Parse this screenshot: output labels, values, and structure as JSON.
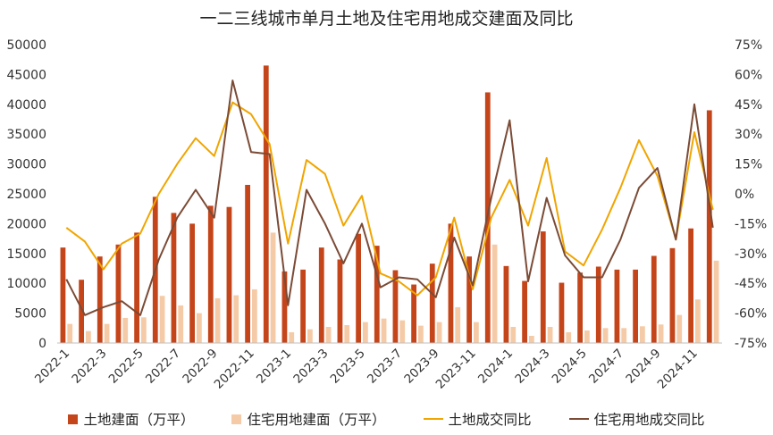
{
  "chart_data": {
    "type": "bar+line",
    "title": "一二三线城市单月土地及住宅用地成交建面及同比",
    "categories": [
      "2022-1",
      "2022-2",
      "2022-3",
      "2022-4",
      "2022-5",
      "2022-6",
      "2022-7",
      "2022-8",
      "2022-9",
      "2022-10",
      "2022-11",
      "2022-12",
      "2023-1",
      "2023-2",
      "2023-3",
      "2023-4",
      "2023-5",
      "2023-6",
      "2023-7",
      "2023-8",
      "2023-9",
      "2023-10",
      "2023-11",
      "2023-12",
      "2024-1",
      "2024-2",
      "2024-3",
      "2024-4",
      "2024-5",
      "2024-6",
      "2024-7",
      "2024-8",
      "2024-9",
      "2024-10",
      "2024-11",
      "2024-12"
    ],
    "x_tick_labels": [
      "2022-1",
      "2022-3",
      "2022-5",
      "2022-7",
      "2022-9",
      "2022-11",
      "2023-1",
      "2023-3",
      "2023-5",
      "2023-7",
      "2023-9",
      "2023-11",
      "2024-1",
      "2024-3",
      "2024-5",
      "2024-7",
      "2024-9",
      "2024-11"
    ],
    "y_left": {
      "min": 0,
      "max": 50000,
      "step": 5000,
      "ticks": [
        "0",
        "5000",
        "10000",
        "15000",
        "20000",
        "25000",
        "30000",
        "35000",
        "40000",
        "45000",
        "50000"
      ]
    },
    "y_right": {
      "min": -75,
      "max": 75,
      "step": 15,
      "ticks": [
        "-75%",
        "-60%",
        "-45%",
        "-30%",
        "-15%",
        "0%",
        "15%",
        "30%",
        "45%",
        "60%",
        "75%"
      ]
    },
    "series": [
      {
        "name": "土地建面（万平）",
        "kind": "bar",
        "axis": "left",
        "color": "#C5451A",
        "values": [
          16000,
          10600,
          14500,
          16500,
          18500,
          24500,
          21800,
          20000,
          23000,
          22800,
          26500,
          46500,
          12000,
          12300,
          16000,
          14000,
          18300,
          16300,
          12200,
          9800,
          13300,
          20000,
          14500,
          42000,
          12900,
          10400,
          18700,
          10100,
          11800,
          12800,
          12300,
          12300,
          14600,
          15900,
          19200,
          39000
        ]
      },
      {
        "name": "住宅用地建面（万平）",
        "kind": "bar",
        "axis": "left",
        "color": "#F5CBA7",
        "values": [
          3200,
          2000,
          3200,
          4200,
          4300,
          7900,
          6300,
          5000,
          7500,
          8000,
          9000,
          18500,
          1800,
          2300,
          2700,
          3000,
          3500,
          4100,
          3800,
          2900,
          3500,
          6000,
          3500,
          16500,
          2700,
          1200,
          2700,
          1800,
          2100,
          2500,
          2500,
          2800,
          3100,
          4700,
          7300,
          13800
        ]
      },
      {
        "name": "土地成交同比",
        "kind": "line",
        "axis": "right",
        "color": "#F0A500",
        "values": [
          -17,
          -24,
          -38,
          -25,
          -20,
          0,
          15,
          28,
          19,
          46,
          40,
          25,
          -25,
          17,
          10,
          -16,
          -1,
          -40,
          -44,
          -51,
          -42,
          -12,
          -48,
          -12,
          7,
          -16,
          18,
          -29,
          -36,
          -18,
          3,
          27,
          9,
          -23,
          31,
          -8
        ]
      },
      {
        "name": "住宅用地成交同比",
        "kind": "line",
        "axis": "right",
        "color": "#7B4B36",
        "values": [
          -43,
          -61,
          -57,
          -54,
          -61,
          -33,
          -12,
          2,
          -12,
          57,
          21,
          20,
          -56,
          2,
          -15,
          -35,
          -15,
          -47,
          -42,
          -43,
          -52,
          -22,
          -46,
          -2,
          37,
          -44,
          -2,
          -31,
          -42,
          -42,
          -23,
          3,
          13,
          -23,
          45,
          -17
        ]
      }
    ],
    "legend": {
      "position": "bottom"
    },
    "grid": false
  }
}
